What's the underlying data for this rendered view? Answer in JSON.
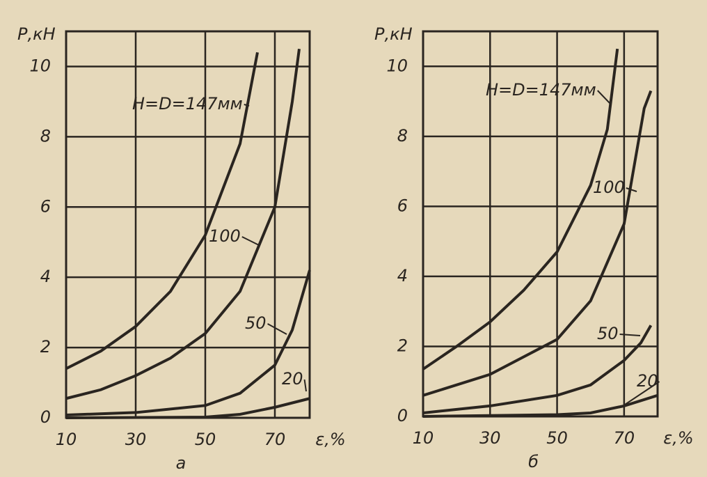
{
  "chart_data": [
    {
      "type": "line",
      "subplot_label": "а",
      "ylabel": "Р,кН",
      "xlabel": "ε,%",
      "xlim": [
        10,
        80
      ],
      "ylim": [
        0,
        11
      ],
      "xticks": [
        10,
        30,
        50,
        70
      ],
      "yticks": [
        0,
        2,
        4,
        6,
        8,
        10
      ],
      "grid": true,
      "series": [
        {
          "name": "H=D=147мм",
          "color": "#2a2520",
          "x": [
            10,
            20,
            30,
            40,
            50,
            60,
            65
          ],
          "values": [
            1.4,
            1.9,
            2.6,
            3.6,
            5.2,
            7.8,
            10.4
          ]
        },
        {
          "name": "100",
          "color": "#2a2520",
          "x": [
            10,
            20,
            30,
            40,
            50,
            60,
            70,
            75,
            77
          ],
          "values": [
            0.55,
            0.8,
            1.2,
            1.7,
            2.4,
            3.6,
            6.0,
            9.0,
            10.5
          ]
        },
        {
          "name": "50",
          "color": "#2a2520",
          "x": [
            10,
            30,
            50,
            60,
            70,
            75,
            80
          ],
          "values": [
            0.08,
            0.15,
            0.35,
            0.7,
            1.5,
            2.5,
            4.2
          ]
        },
        {
          "name": "20",
          "color": "#2a2520",
          "x": [
            10,
            50,
            60,
            70,
            80
          ],
          "values": [
            0,
            0.02,
            0.1,
            0.3,
            0.55
          ]
        }
      ]
    },
    {
      "type": "line",
      "subplot_label": "б",
      "ylabel": "Р,кН",
      "xlabel": "ε,%",
      "xlim": [
        10,
        80
      ],
      "ylim": [
        0,
        11
      ],
      "xticks": [
        10,
        30,
        50,
        70
      ],
      "yticks": [
        0,
        2,
        4,
        6,
        8,
        10
      ],
      "grid": true,
      "series": [
        {
          "name": "H=D=147мм",
          "color": "#2a2520",
          "x": [
            10,
            20,
            30,
            40,
            50,
            60,
            65,
            68
          ],
          "values": [
            1.35,
            2.0,
            2.7,
            3.6,
            4.7,
            6.6,
            8.2,
            10.5
          ]
        },
        {
          "name": "100",
          "color": "#2a2520",
          "x": [
            10,
            30,
            50,
            60,
            70,
            76,
            78
          ],
          "values": [
            0.6,
            1.2,
            2.2,
            3.3,
            5.5,
            8.8,
            9.3
          ]
        },
        {
          "name": "50",
          "color": "#2a2520",
          "x": [
            10,
            30,
            50,
            60,
            70,
            75,
            78
          ],
          "values": [
            0.1,
            0.3,
            0.6,
            0.9,
            1.6,
            2.1,
            2.6
          ]
        },
        {
          "name": "20",
          "color": "#2a2520",
          "x": [
            10,
            50,
            60,
            70,
            80
          ],
          "values": [
            0,
            0.05,
            0.1,
            0.3,
            0.6
          ]
        }
      ]
    }
  ]
}
